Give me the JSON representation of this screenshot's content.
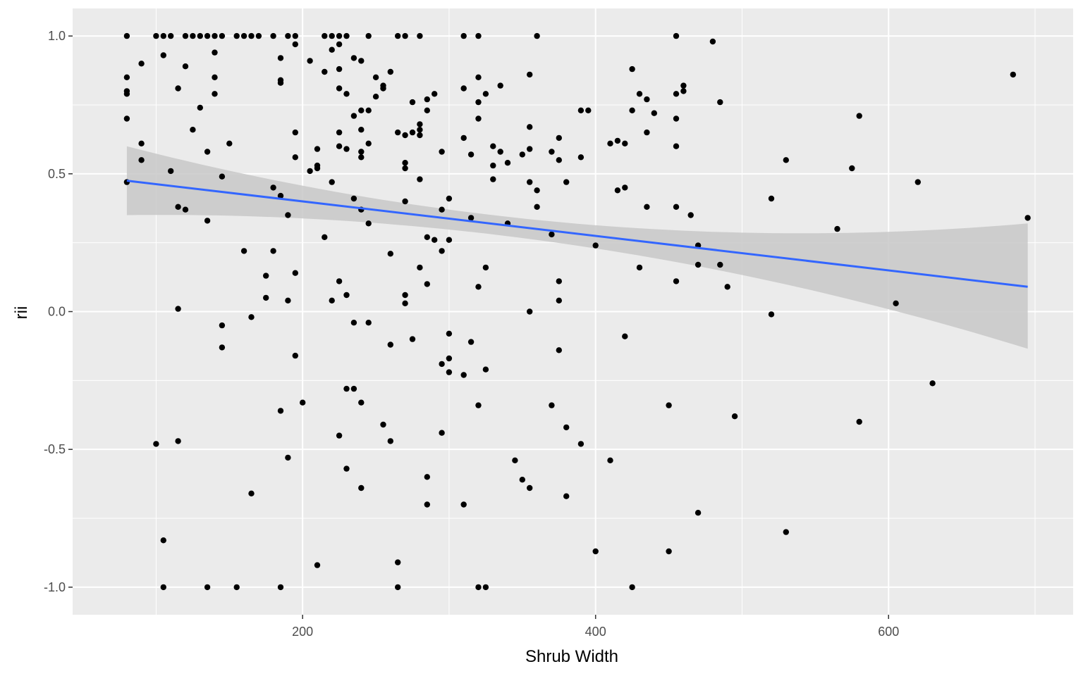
{
  "chart_data": {
    "type": "scatter",
    "title": "",
    "xlabel": "Shrub Width",
    "ylabel": "rii",
    "xlim": [
      43,
      726
    ],
    "ylim": [
      -1.1,
      1.1
    ],
    "x_ticks": [
      200,
      400,
      600
    ],
    "x_tick_labels": [
      "200",
      "400",
      "600"
    ],
    "y_ticks": [
      -1.0,
      -0.5,
      0.0,
      0.5,
      1.0
    ],
    "y_tick_labels": [
      "-1.0",
      "-0.5",
      "0.0",
      "0.5",
      "1.0"
    ],
    "grid": true,
    "colors": {
      "panel_bg": "#ebebeb",
      "grid_major": "#ffffff",
      "point": "#000000",
      "fit_line": "#3366ff",
      "ribbon": "#c8c8c8",
      "tick_text": "#4d4d4d"
    },
    "points": [
      [
        80,
        1.0
      ],
      [
        80,
        0.85
      ],
      [
        80,
        0.8
      ],
      [
        80,
        0.79
      ],
      [
        80,
        0.7
      ],
      [
        80,
        0.47
      ],
      [
        90,
        0.9
      ],
      [
        90,
        0.61
      ],
      [
        90,
        0.55
      ],
      [
        100,
        1.0
      ],
      [
        100,
        -0.48
      ],
      [
        105,
        1.0
      ],
      [
        105,
        0.93
      ],
      [
        105,
        -0.83
      ],
      [
        105,
        -1.0
      ],
      [
        110,
        1.0
      ],
      [
        110,
        0.51
      ],
      [
        115,
        0.81
      ],
      [
        115,
        0.38
      ],
      [
        115,
        0.01
      ],
      [
        115,
        -0.47
      ],
      [
        120,
        1.0
      ],
      [
        120,
        0.89
      ],
      [
        120,
        0.37
      ],
      [
        125,
        1.0
      ],
      [
        125,
        0.66
      ],
      [
        130,
        1.0
      ],
      [
        130,
        0.74
      ],
      [
        135,
        1.0
      ],
      [
        135,
        0.58
      ],
      [
        135,
        0.33
      ],
      [
        135,
        -1.0
      ],
      [
        140,
        1.0
      ],
      [
        140,
        0.94
      ],
      [
        140,
        0.85
      ],
      [
        140,
        0.79
      ],
      [
        145,
        1.0
      ],
      [
        145,
        0.49
      ],
      [
        145,
        -0.05
      ],
      [
        145,
        -0.13
      ],
      [
        150,
        0.61
      ],
      [
        155,
        1.0
      ],
      [
        155,
        -1.0
      ],
      [
        160,
        1.0
      ],
      [
        160,
        0.22
      ],
      [
        165,
        1.0
      ],
      [
        165,
        -0.02
      ],
      [
        165,
        -0.66
      ],
      [
        170,
        1.0
      ],
      [
        175,
        0.13
      ],
      [
        175,
        0.05
      ],
      [
        180,
        1.0
      ],
      [
        180,
        0.45
      ],
      [
        180,
        0.22
      ],
      [
        185,
        0.92
      ],
      [
        185,
        0.84
      ],
      [
        185,
        0.83
      ],
      [
        185,
        0.42
      ],
      [
        185,
        -0.36
      ],
      [
        185,
        -1.0
      ],
      [
        190,
        1.0
      ],
      [
        190,
        0.35
      ],
      [
        190,
        0.04
      ],
      [
        190,
        -0.53
      ],
      [
        195,
        1.0
      ],
      [
        195,
        0.97
      ],
      [
        195,
        0.65
      ],
      [
        195,
        0.56
      ],
      [
        195,
        0.14
      ],
      [
        195,
        -0.16
      ],
      [
        200,
        -0.33
      ],
      [
        205,
        0.91
      ],
      [
        205,
        0.51
      ],
      [
        210,
        0.59
      ],
      [
        210,
        0.53
      ],
      [
        210,
        0.52
      ],
      [
        210,
        -0.92
      ],
      [
        215,
        1.0
      ],
      [
        215,
        0.87
      ],
      [
        215,
        0.27
      ],
      [
        220,
        1.0
      ],
      [
        220,
        0.95
      ],
      [
        220,
        0.47
      ],
      [
        220,
        0.04
      ],
      [
        225,
        1.0
      ],
      [
        225,
        0.97
      ],
      [
        225,
        0.88
      ],
      [
        225,
        0.81
      ],
      [
        225,
        0.65
      ],
      [
        225,
        0.6
      ],
      [
        225,
        0.11
      ],
      [
        225,
        -0.45
      ],
      [
        230,
        1.0
      ],
      [
        230,
        0.79
      ],
      [
        230,
        0.59
      ],
      [
        230,
        0.06
      ],
      [
        230,
        -0.28
      ],
      [
        230,
        -0.57
      ],
      [
        235,
        0.92
      ],
      [
        235,
        0.71
      ],
      [
        235,
        0.41
      ],
      [
        235,
        -0.04
      ],
      [
        235,
        -0.28
      ],
      [
        240,
        0.91
      ],
      [
        240,
        0.73
      ],
      [
        240,
        0.66
      ],
      [
        240,
        0.58
      ],
      [
        240,
        0.56
      ],
      [
        240,
        0.37
      ],
      [
        240,
        -0.33
      ],
      [
        240,
        -0.64
      ],
      [
        245,
        1.0
      ],
      [
        245,
        0.73
      ],
      [
        245,
        0.61
      ],
      [
        245,
        0.32
      ],
      [
        245,
        -0.04
      ],
      [
        250,
        0.85
      ],
      [
        250,
        0.78
      ],
      [
        255,
        0.82
      ],
      [
        255,
        0.81
      ],
      [
        255,
        -0.41
      ],
      [
        260,
        0.87
      ],
      [
        260,
        0.21
      ],
      [
        260,
        -0.12
      ],
      [
        260,
        -0.47
      ],
      [
        265,
        1.0
      ],
      [
        265,
        0.65
      ],
      [
        265,
        -0.91
      ],
      [
        265,
        -1.0
      ],
      [
        270,
        1.0
      ],
      [
        270,
        0.64
      ],
      [
        270,
        0.54
      ],
      [
        270,
        0.52
      ],
      [
        270,
        0.4
      ],
      [
        270,
        0.06
      ],
      [
        270,
        0.03
      ],
      [
        275,
        0.76
      ],
      [
        275,
        0.65
      ],
      [
        275,
        -0.1
      ],
      [
        280,
        1.0
      ],
      [
        280,
        0.68
      ],
      [
        280,
        0.66
      ],
      [
        280,
        0.64
      ],
      [
        280,
        0.48
      ],
      [
        280,
        0.16
      ],
      [
        285,
        0.77
      ],
      [
        285,
        0.73
      ],
      [
        285,
        0.27
      ],
      [
        285,
        0.1
      ],
      [
        285,
        -0.6
      ],
      [
        285,
        -0.7
      ],
      [
        290,
        0.79
      ],
      [
        290,
        0.26
      ],
      [
        295,
        0.58
      ],
      [
        295,
        0.37
      ],
      [
        295,
        0.22
      ],
      [
        295,
        -0.19
      ],
      [
        295,
        -0.44
      ],
      [
        300,
        0.41
      ],
      [
        300,
        0.26
      ],
      [
        300,
        -0.08
      ],
      [
        300,
        -0.17
      ],
      [
        300,
        -0.22
      ],
      [
        310,
        1.0
      ],
      [
        310,
        0.81
      ],
      [
        310,
        0.63
      ],
      [
        310,
        -0.23
      ],
      [
        310,
        -0.7
      ],
      [
        315,
        0.57
      ],
      [
        315,
        0.34
      ],
      [
        315,
        -0.11
      ],
      [
        320,
        1.0
      ],
      [
        320,
        0.85
      ],
      [
        320,
        0.76
      ],
      [
        320,
        0.7
      ],
      [
        320,
        0.09
      ],
      [
        320,
        -0.34
      ],
      [
        320,
        -1.0
      ],
      [
        325,
        0.79
      ],
      [
        325,
        0.16
      ],
      [
        325,
        -0.21
      ],
      [
        325,
        -1.0
      ],
      [
        330,
        0.6
      ],
      [
        330,
        0.53
      ],
      [
        330,
        0.48
      ],
      [
        335,
        0.82
      ],
      [
        335,
        0.58
      ],
      [
        340,
        0.54
      ],
      [
        340,
        0.32
      ],
      [
        345,
        -0.54
      ],
      [
        350,
        0.57
      ],
      [
        350,
        -0.61
      ],
      [
        355,
        0.86
      ],
      [
        355,
        0.67
      ],
      [
        355,
        0.59
      ],
      [
        355,
        0.47
      ],
      [
        355,
        0.0
      ],
      [
        355,
        -0.64
      ],
      [
        360,
        1.0
      ],
      [
        360,
        0.44
      ],
      [
        360,
        0.38
      ],
      [
        370,
        0.58
      ],
      [
        370,
        0.28
      ],
      [
        370,
        -0.34
      ],
      [
        375,
        0.63
      ],
      [
        375,
        0.55
      ],
      [
        375,
        0.11
      ],
      [
        375,
        0.04
      ],
      [
        375,
        -0.14
      ],
      [
        380,
        0.47
      ],
      [
        380,
        -0.42
      ],
      [
        380,
        -0.67
      ],
      [
        390,
        0.73
      ],
      [
        390,
        0.56
      ],
      [
        390,
        -0.48
      ],
      [
        395,
        0.73
      ],
      [
        400,
        0.24
      ],
      [
        400,
        -0.87
      ],
      [
        410,
        0.61
      ],
      [
        410,
        -0.54
      ],
      [
        415,
        0.62
      ],
      [
        415,
        0.44
      ],
      [
        420,
        0.61
      ],
      [
        420,
        0.45
      ],
      [
        420,
        -0.09
      ],
      [
        425,
        0.88
      ],
      [
        425,
        0.73
      ],
      [
        425,
        -1.0
      ],
      [
        430,
        0.79
      ],
      [
        430,
        0.16
      ],
      [
        435,
        0.77
      ],
      [
        435,
        0.65
      ],
      [
        435,
        0.38
      ],
      [
        440,
        0.72
      ],
      [
        450,
        -0.34
      ],
      [
        450,
        -0.87
      ],
      [
        455,
        1.0
      ],
      [
        455,
        0.79
      ],
      [
        455,
        0.7
      ],
      [
        455,
        0.6
      ],
      [
        455,
        0.38
      ],
      [
        455,
        0.11
      ],
      [
        460,
        0.82
      ],
      [
        460,
        0.8
      ],
      [
        465,
        0.35
      ],
      [
        470,
        0.24
      ],
      [
        470,
        0.17
      ],
      [
        470,
        -0.73
      ],
      [
        480,
        0.98
      ],
      [
        485,
        0.76
      ],
      [
        485,
        0.17
      ],
      [
        490,
        0.09
      ],
      [
        495,
        -0.38
      ],
      [
        520,
        0.41
      ],
      [
        520,
        -0.01
      ],
      [
        530,
        0.55
      ],
      [
        530,
        -0.8
      ],
      [
        565,
        0.3
      ],
      [
        575,
        0.52
      ],
      [
        580,
        0.71
      ],
      [
        580,
        -0.4
      ],
      [
        605,
        0.03
      ],
      [
        620,
        0.47
      ],
      [
        630,
        -0.26
      ],
      [
        685,
        0.86
      ],
      [
        695,
        0.34
      ]
    ],
    "fit": {
      "method": "lm",
      "x_start": 80,
      "x_end": 695,
      "y_start": 0.475,
      "y_end": 0.09,
      "ci_start": [
        0.35,
        0.6
      ],
      "ci_mid": [
        0.28,
        0.35
      ],
      "ci_mid_x": 330,
      "ci_end": [
        -0.135,
        0.32
      ]
    }
  }
}
